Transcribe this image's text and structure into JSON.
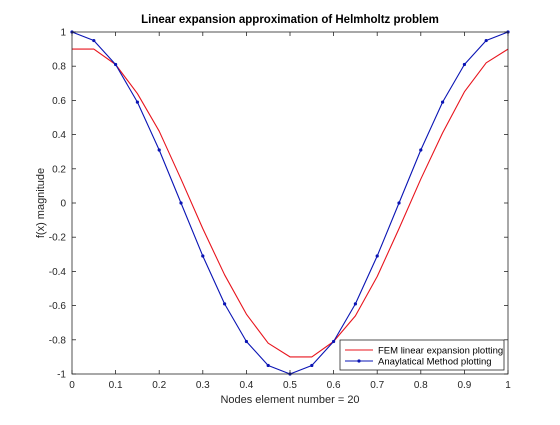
{
  "chart_data": {
    "type": "line",
    "title": "Linear expansion approximation of Helmholtz problem",
    "xlabel": "Nodes element number = 20",
    "ylabel": "f(x) magnitude",
    "xlim": [
      0,
      1
    ],
    "ylim": [
      -1,
      1
    ],
    "xticks": [
      0,
      0.1,
      0.2,
      0.3,
      0.4,
      0.5,
      0.6,
      0.7,
      0.8,
      0.9,
      1
    ],
    "xtick_labels": [
      "0",
      "0.1",
      "0.2",
      "0.3",
      "0.4",
      "0.5",
      "0.6",
      "0.7",
      "0.8",
      "0.9",
      "1"
    ],
    "yticks": [
      -1,
      -0.8,
      -0.6,
      -0.4,
      -0.2,
      0,
      0.2,
      0.4,
      0.6,
      0.8,
      1
    ],
    "ytick_labels": [
      "-1",
      "-0.8",
      "-0.6",
      "-0.4",
      "-0.2",
      "0",
      "0.2",
      "0.4",
      "0.6",
      "0.8",
      "1"
    ],
    "grid": false,
    "legend_position": "bottom-right",
    "series": [
      {
        "name": "FEM linear expansion plotting",
        "color": "#e8141d",
        "marker": "none",
        "x": [
          0,
          0.05,
          0.1,
          0.15,
          0.2,
          0.25,
          0.3,
          0.35,
          0.4,
          0.45,
          0.5,
          0.55,
          0.6,
          0.65,
          0.7,
          0.75,
          0.8,
          0.85,
          0.9,
          0.95,
          1
        ],
        "y": [
          0.9,
          0.9,
          0.81,
          0.64,
          0.42,
          0.14,
          -0.15,
          -0.42,
          -0.65,
          -0.82,
          -0.9,
          -0.9,
          -0.81,
          -0.66,
          -0.43,
          -0.15,
          0.14,
          0.41,
          0.65,
          0.82,
          0.9
        ]
      },
      {
        "name": "Anaylatical Method plotting",
        "color": "#0a14b4",
        "marker": "dot",
        "x": [
          0,
          0.05,
          0.1,
          0.15,
          0.2,
          0.25,
          0.3,
          0.35,
          0.4,
          0.45,
          0.5,
          0.55,
          0.6,
          0.65,
          0.7,
          0.75,
          0.8,
          0.85,
          0.9,
          0.95,
          1
        ],
        "y": [
          1,
          0.95,
          0.81,
          0.59,
          0.31,
          0,
          -0.31,
          -0.59,
          -0.81,
          -0.95,
          -1,
          -0.95,
          -0.81,
          -0.59,
          -0.31,
          0,
          0.31,
          0.59,
          0.81,
          0.95,
          1
        ]
      }
    ]
  }
}
